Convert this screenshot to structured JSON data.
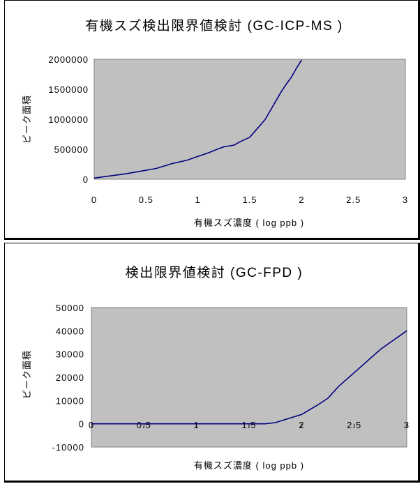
{
  "colors": {
    "plot_bg": "#c0c0c0",
    "line": "#000080",
    "frame": "#808080"
  },
  "chart_data": [
    {
      "type": "line",
      "title": "有機スズ検出限界値検討 (GC-ICP-MS )",
      "xlabel": "有機スズ濃度 ( log ppb )",
      "ylabel": "ピーク面積",
      "xlim": [
        0,
        3
      ],
      "ylim": [
        0,
        2000000
      ],
      "x_ticks": [
        "0",
        "0.5",
        "1",
        "1.5",
        "2",
        "2.5",
        "3"
      ],
      "y_ticks": [
        "0",
        "500000",
        "1000000",
        "1500000",
        "2000000"
      ],
      "grid": false,
      "legend": "none",
      "series": [
        {
          "x": [
            0,
            0.3,
            0.6,
            0.75,
            0.9,
            1.0,
            1.1,
            1.2,
            1.25,
            1.35,
            1.4,
            1.45,
            1.5,
            1.55,
            1.6,
            1.65,
            1.7,
            1.75,
            1.8,
            1.85,
            1.9,
            1.95,
            2.0
          ],
          "y": [
            20000,
            90000,
            180000,
            260000,
            320000,
            380000,
            440000,
            510000,
            540000,
            570000,
            620000,
            660000,
            700000,
            800000,
            900000,
            1000000,
            1150000,
            1300000,
            1450000,
            1580000,
            1700000,
            1850000,
            1990000
          ]
        }
      ]
    },
    {
      "type": "line",
      "title": "検出限界値検討 (GC-FPD )",
      "xlabel": "有機スズ濃度 ( log ppb )",
      "ylabel": "ピーク面積",
      "xlim": [
        0,
        3
      ],
      "ylim": [
        -10000,
        50000
      ],
      "x_ticks": [
        "0",
        "0.5",
        "1",
        "1.5",
        "2",
        "2.5",
        "3"
      ],
      "y_ticks": [
        "-10000",
        "0",
        "10000",
        "20000",
        "30000",
        "40000",
        "50000"
      ],
      "grid": false,
      "legend": "none",
      "series": [
        {
          "x": [
            0,
            0.5,
            1.0,
            1.5,
            1.65,
            1.75,
            2.0,
            2.15,
            2.25,
            2.35,
            2.5,
            2.75,
            3.0
          ],
          "y": [
            0,
            0,
            0,
            0,
            0,
            500,
            4000,
            8000,
            11000,
            16000,
            22000,
            32000,
            40000
          ]
        }
      ]
    }
  ]
}
